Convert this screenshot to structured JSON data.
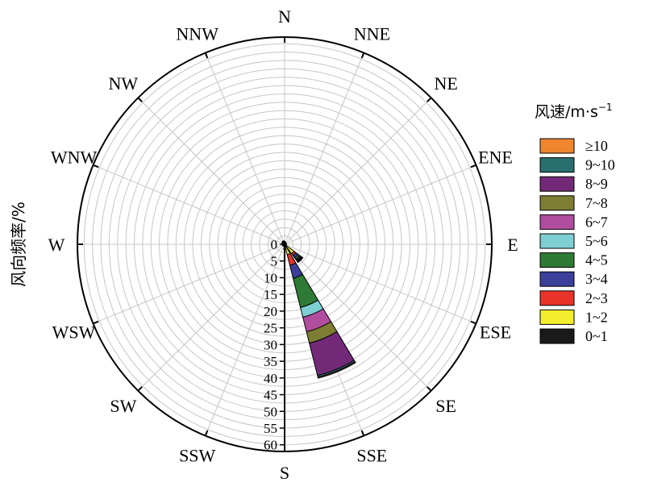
{
  "chart_data": {
    "type": "windrose",
    "ylabel": "风向频率/%",
    "legend_title": "风速/m·s",
    "legend_title_sup": "−1",
    "directions": [
      "N",
      "NNE",
      "NE",
      "ENE",
      "E",
      "ESE",
      "SE",
      "SSE",
      "S",
      "SSW",
      "SW",
      "WSW",
      "W",
      "WNW",
      "NW",
      "NNW"
    ],
    "radial_ticks": [
      "0",
      "5",
      "10",
      "15",
      "20",
      "25",
      "30",
      "35",
      "40",
      "45",
      "50",
      "55",
      "60"
    ],
    "rmax": 62,
    "grid": true,
    "legend_position": "right",
    "bins": [
      {
        "label": "0~1",
        "color": "#1a1a1a"
      },
      {
        "label": "1~2",
        "color": "#f2ee2e"
      },
      {
        "label": "2~3",
        "color": "#e8332a"
      },
      {
        "label": "3~4",
        "color": "#3b3f9a"
      },
      {
        "label": "4~5",
        "color": "#2f7a35"
      },
      {
        "label": "5~6",
        "color": "#7ecfd3"
      },
      {
        "label": "6~7",
        "color": "#b14d9f"
      },
      {
        "label": "7~8",
        "color": "#7d7e34"
      },
      {
        "label": "8~9",
        "color": "#722a78"
      },
      {
        "label": "9~10",
        "color": "#2a6f70"
      },
      {
        "label": "≥10",
        "color": "#f08530"
      }
    ],
    "series": [
      {
        "direction": "SSE",
        "cumulative": [
          0.8,
          3.2,
          6.5,
          10.5,
          19.5,
          22.5,
          27.0,
          30.5,
          40.5,
          41.0,
          41.3
        ]
      },
      {
        "direction": "SE",
        "cumulative": [
          0.5,
          3.5,
          4.2,
          5.0,
          5.6,
          5.9,
          6.2,
          6.4,
          6.6,
          6.7,
          6.8
        ]
      },
      {
        "direction": "S",
        "cumulative": [
          1.0,
          1.3,
          1.5,
          1.6,
          1.6,
          1.6,
          1.6,
          1.6,
          1.6,
          1.6,
          1.6
        ]
      },
      {
        "direction": "ESE",
        "cumulative": [
          0.5,
          0.6,
          0.6,
          0.6,
          0.6,
          0.6,
          0.6,
          0.6,
          0.6,
          0.6,
          0.6
        ]
      },
      {
        "direction": "E",
        "cumulative": [
          0.4,
          0.5,
          0.5,
          0.5,
          0.5,
          0.5,
          0.5,
          0.5,
          0.5,
          0.5,
          0.5
        ]
      },
      {
        "direction": "SW",
        "cumulative": [
          0.6,
          0.7,
          0.7,
          0.7,
          0.7,
          0.7,
          0.7,
          0.7,
          0.7,
          0.7,
          0.7
        ]
      },
      {
        "direction": "WSW",
        "cumulative": [
          0.6,
          0.7,
          0.7,
          0.7,
          0.7,
          0.7,
          0.7,
          0.7,
          0.7,
          0.7,
          0.7
        ]
      },
      {
        "direction": "W",
        "cumulative": [
          0.6,
          0.7,
          0.7,
          0.7,
          0.7,
          0.7,
          0.7,
          0.7,
          0.7,
          0.7,
          0.7
        ]
      },
      {
        "direction": "WNW",
        "cumulative": [
          0.7,
          0.8,
          0.8,
          0.8,
          0.8,
          0.8,
          0.8,
          0.8,
          0.8,
          0.8,
          0.8
        ]
      },
      {
        "direction": "NW",
        "cumulative": [
          0.9,
          1.0,
          1.0,
          1.0,
          1.0,
          1.0,
          1.0,
          1.0,
          1.0,
          1.0,
          1.0
        ]
      },
      {
        "direction": "NNW",
        "cumulative": [
          1.0,
          1.1,
          1.1,
          1.1,
          1.1,
          1.1,
          1.1,
          1.1,
          1.1,
          1.1,
          1.1
        ]
      },
      {
        "direction": "N",
        "cumulative": [
          0.8,
          0.9,
          0.9,
          0.9,
          0.9,
          0.9,
          0.9,
          0.9,
          0.9,
          0.9,
          0.9
        ]
      },
      {
        "direction": "NNE",
        "cumulative": [
          0.6,
          0.7,
          0.7,
          0.7,
          0.7,
          0.7,
          0.7,
          0.7,
          0.7,
          0.7,
          0.7
        ]
      },
      {
        "direction": "NE",
        "cumulative": [
          0.5,
          0.6,
          0.6,
          0.6,
          0.6,
          0.6,
          0.6,
          0.6,
          0.6,
          0.6,
          0.6
        ]
      },
      {
        "direction": "ENE",
        "cumulative": [
          0.4,
          0.5,
          0.5,
          0.5,
          0.5,
          0.5,
          0.5,
          0.5,
          0.5,
          0.5,
          0.5
        ]
      },
      {
        "direction": "SSW",
        "cumulative": [
          0.5,
          0.6,
          0.6,
          0.6,
          0.6,
          0.6,
          0.6,
          0.6,
          0.6,
          0.6,
          0.6
        ]
      }
    ]
  }
}
